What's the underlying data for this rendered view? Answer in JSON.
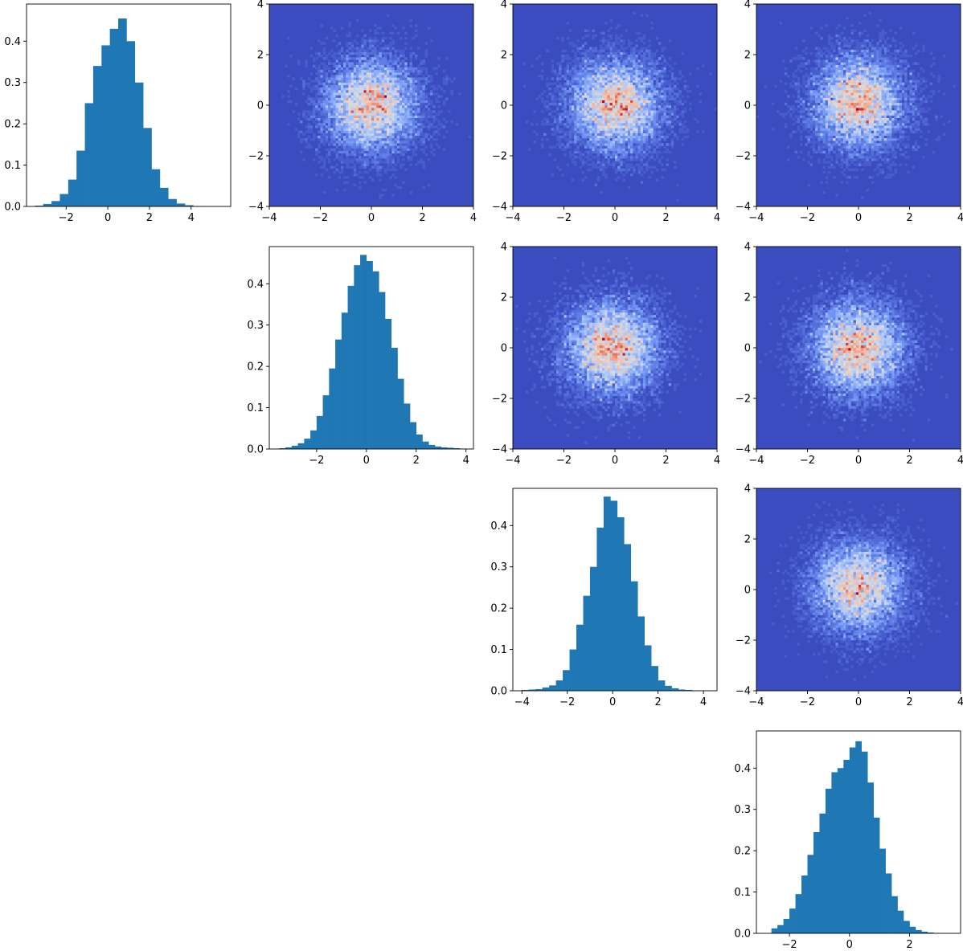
{
  "colors": {
    "hist_bar": "#1f77b4",
    "axis": "#000000",
    "cmap": [
      "#3b4cc0",
      "#6f92f3",
      "#aac7fd",
      "#dddcdc",
      "#f7b89c",
      "#e7745b",
      "#b40426"
    ]
  },
  "chart_data": [
    {
      "type": "bar",
      "panel": "1,1",
      "title": "",
      "xlabel": "",
      "ylabel": "",
      "bin_edges": [
        -3.5,
        -3.1,
        -2.7,
        -2.3,
        -1.9,
        -1.5,
        -1.1,
        -0.7,
        -0.3,
        0.1,
        0.5,
        0.9,
        1.3,
        1.7,
        2.1,
        2.5,
        2.9,
        3.3,
        3.7,
        4.1,
        4.5,
        4.9,
        5.3
      ],
      "values": [
        0.002,
        0.006,
        0.013,
        0.03,
        0.065,
        0.135,
        0.25,
        0.34,
        0.39,
        0.43,
        0.455,
        0.4,
        0.3,
        0.19,
        0.09,
        0.045,
        0.018,
        0.007,
        0.003,
        0.001,
        0.0005,
        0.0005
      ],
      "xlim": [
        -3.9,
        5.9
      ],
      "ylim": [
        0,
        0.49
      ],
      "xticks": [
        -2,
        0,
        2,
        4
      ],
      "yticks": [
        0.0,
        0.1,
        0.2,
        0.3,
        0.4
      ]
    },
    {
      "type": "heatmap",
      "panel": "1,2",
      "xlim": [
        -4,
        4
      ],
      "ylim": [
        -4,
        4
      ],
      "xticks": [
        -4,
        -2,
        0,
        2,
        4
      ],
      "yticks": [
        -4,
        -2,
        0,
        2,
        4
      ],
      "center": [
        0.0,
        0.0
      ],
      "sigma": 1.0,
      "seed": 11
    },
    {
      "type": "heatmap",
      "panel": "1,3",
      "xlim": [
        -4,
        4
      ],
      "ylim": [
        -4,
        4
      ],
      "xticks": [
        -4,
        -2,
        0,
        2,
        4
      ],
      "yticks": [
        -4,
        -2,
        0,
        2,
        4
      ],
      "center": [
        0.0,
        0.0
      ],
      "sigma": 1.0,
      "seed": 23
    },
    {
      "type": "heatmap",
      "panel": "1,4",
      "xlim": [
        -4,
        4
      ],
      "ylim": [
        -4,
        4
      ],
      "xticks": [
        -4,
        -2,
        0,
        2,
        4
      ],
      "yticks": [
        -4,
        -2,
        0,
        2,
        4
      ],
      "center": [
        0.0,
        0.1
      ],
      "sigma": 1.0,
      "seed": 37
    },
    {
      "type": "bar",
      "panel": "2,2",
      "title": "",
      "xlabel": "",
      "ylabel": "",
      "bin_edges": [
        -3.5,
        -3.25,
        -3.0,
        -2.75,
        -2.5,
        -2.25,
        -2.0,
        -1.75,
        -1.5,
        -1.25,
        -1.0,
        -0.75,
        -0.5,
        -0.25,
        0.0,
        0.25,
        0.5,
        0.75,
        1.0,
        1.25,
        1.5,
        1.75,
        2.0,
        2.25,
        2.5,
        2.75,
        3.0,
        3.25,
        3.5,
        3.75,
        4.0
      ],
      "values": [
        0.002,
        0.004,
        0.008,
        0.014,
        0.025,
        0.045,
        0.08,
        0.13,
        0.195,
        0.265,
        0.33,
        0.395,
        0.445,
        0.47,
        0.455,
        0.43,
        0.38,
        0.315,
        0.245,
        0.17,
        0.11,
        0.065,
        0.035,
        0.018,
        0.01,
        0.006,
        0.004,
        0.003,
        0.002,
        0.001
      ],
      "xlim": [
        -3.9,
        4.3
      ],
      "ylim": [
        0,
        0.49
      ],
      "xticks": [
        -2,
        0,
        2,
        4
      ],
      "yticks": [
        0.0,
        0.1,
        0.2,
        0.3,
        0.4
      ]
    },
    {
      "type": "heatmap",
      "panel": "2,3",
      "xlim": [
        -4,
        4
      ],
      "ylim": [
        -4,
        4
      ],
      "xticks": [
        -4,
        -2,
        0,
        2,
        4
      ],
      "yticks": [
        -4,
        -2,
        0,
        2,
        4
      ],
      "center": [
        -0.1,
        0.0
      ],
      "sigma": 1.0,
      "seed": 53
    },
    {
      "type": "heatmap",
      "panel": "2,4",
      "xlim": [
        -4,
        4
      ],
      "ylim": [
        -4,
        4
      ],
      "xticks": [
        -4,
        -2,
        0,
        2,
        4
      ],
      "yticks": [
        -4,
        -2,
        0,
        2,
        4
      ],
      "center": [
        0.0,
        0.0
      ],
      "sigma": 1.0,
      "seed": 71
    },
    {
      "type": "bar",
      "panel": "3,3",
      "title": "",
      "xlabel": "",
      "ylabel": "",
      "bin_edges": [
        -4.0,
        -3.7,
        -3.4,
        -3.1,
        -2.8,
        -2.5,
        -2.2,
        -1.9,
        -1.6,
        -1.3,
        -1.0,
        -0.7,
        -0.4,
        -0.1,
        0.2,
        0.5,
        0.8,
        1.1,
        1.4,
        1.7,
        2.0,
        2.3,
        2.6,
        2.9,
        3.2,
        3.5,
        3.8,
        4.1
      ],
      "values": [
        0.002,
        0.003,
        0.004,
        0.008,
        0.013,
        0.025,
        0.05,
        0.1,
        0.16,
        0.23,
        0.3,
        0.395,
        0.47,
        0.46,
        0.42,
        0.355,
        0.265,
        0.18,
        0.11,
        0.06,
        0.025,
        0.012,
        0.006,
        0.003,
        0.002,
        0.001,
        0.0005
      ],
      "xlim": [
        -4.4,
        4.6
      ],
      "ylim": [
        0,
        0.49
      ],
      "xticks": [
        -4,
        -2,
        0,
        2,
        4
      ],
      "yticks": [
        0.0,
        0.1,
        0.2,
        0.3,
        0.4
      ]
    },
    {
      "type": "heatmap",
      "panel": "3,4",
      "xlim": [
        -4,
        4
      ],
      "ylim": [
        -4,
        4
      ],
      "xticks": [
        -4,
        -2,
        0,
        2,
        4
      ],
      "yticks": [
        -4,
        -2,
        0,
        2,
        4
      ],
      "center": [
        0.0,
        0.1
      ],
      "sigma": 1.0,
      "seed": 97
    },
    {
      "type": "bar",
      "panel": "4,4",
      "title": "",
      "xlabel": "",
      "ylabel": "",
      "bin_edges": [
        -2.6,
        -2.4,
        -2.2,
        -2.0,
        -1.8,
        -1.6,
        -1.4,
        -1.2,
        -1.0,
        -0.8,
        -0.6,
        -0.4,
        -0.2,
        0.0,
        0.2,
        0.4,
        0.6,
        0.8,
        1.0,
        1.2,
        1.4,
        1.6,
        1.8,
        2.0,
        2.2,
        2.4,
        2.6,
        2.8,
        3.0,
        3.2
      ],
      "values": [
        0.012,
        0.02,
        0.035,
        0.06,
        0.095,
        0.14,
        0.19,
        0.245,
        0.29,
        0.35,
        0.39,
        0.4,
        0.42,
        0.45,
        0.465,
        0.44,
        0.365,
        0.28,
        0.205,
        0.145,
        0.09,
        0.055,
        0.03,
        0.016,
        0.008,
        0.004,
        0.002,
        0.001,
        0.0005
      ],
      "xlim": [
        -3.1,
        3.7
      ],
      "ylim": [
        0,
        0.49
      ],
      "xticks": [
        -2,
        0,
        2
      ],
      "yticks": [
        0.0,
        0.1,
        0.2,
        0.3,
        0.4
      ]
    }
  ]
}
